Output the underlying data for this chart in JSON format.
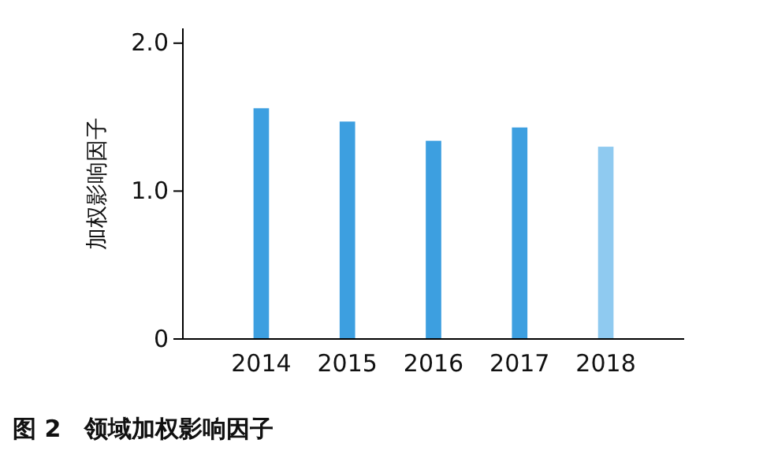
{
  "chart_data": {
    "type": "bar",
    "title": "图 2　领域加权影响因子",
    "ylabel": "加权影响因子",
    "categories": [
      "2014",
      "2015",
      "2016",
      "2017",
      "2018"
    ],
    "values": [
      1.56,
      1.47,
      1.34,
      1.43,
      1.3
    ],
    "colors": [
      "#3d9fe0",
      "#3d9fe0",
      "#3d9fe0",
      "#3d9fe0",
      "#8fcaf0"
    ],
    "ylim": [
      0,
      2.1
    ],
    "yticks": [
      0,
      {
        "value": 1,
        "label": "1.0"
      },
      {
        "value": 2,
        "label": "2.0"
      }
    ],
    "grid": false
  }
}
